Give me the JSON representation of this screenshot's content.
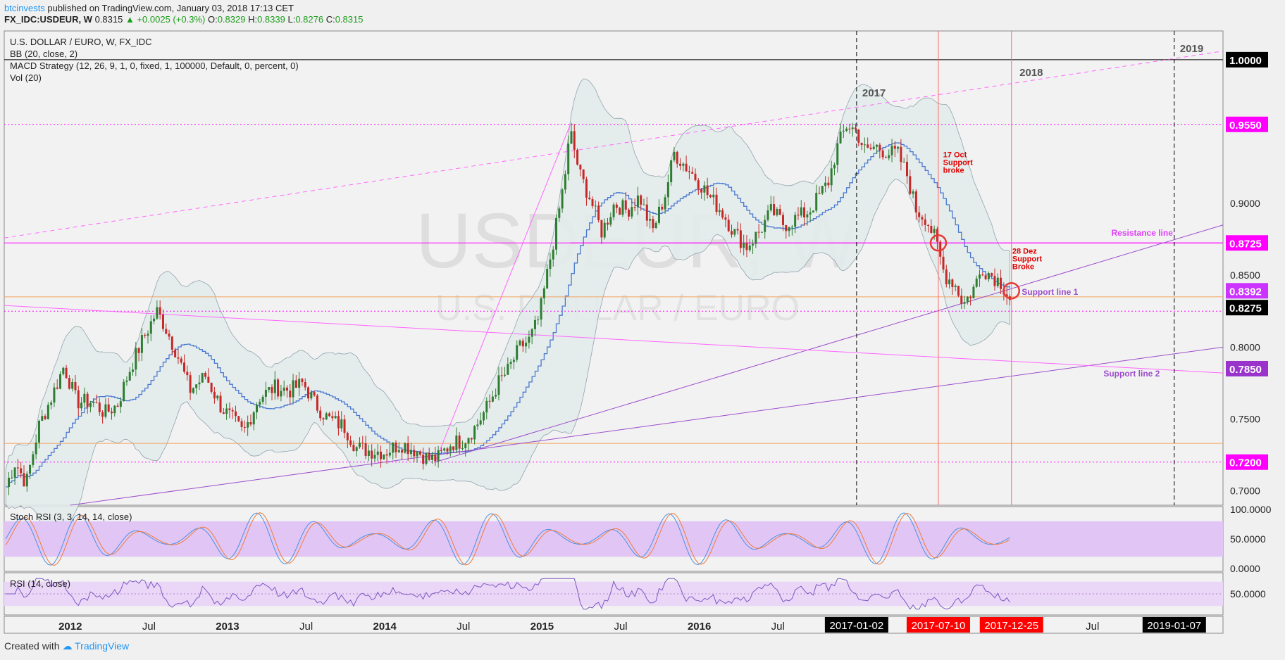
{
  "header": {
    "author": "btcinvests",
    "published": " published on TradingView.com, January 03, 2018 17:13 CET",
    "symbol": "FX_IDC:USDEUR, W",
    "last": "0.8315",
    "change": "+0.0025 (+0.3%)",
    "o_label": "O:",
    "o": "0.8329",
    "h_label": "H:",
    "h": "0.8339",
    "l_label": "L:",
    "l": "0.8276",
    "c_label": "C:",
    "c": "0.8315"
  },
  "legend": {
    "line1": "U.S. DOLLAR / EURO, W, FX_IDC",
    "line2": "BB (20, close, 2)",
    "line3": "MACD Strategy (12, 26, 9, 1, 0, fixed, 1, 100000, Default, 0, percent, 0)",
    "line4": "Vol (20)",
    "stoch": "Stoch RSI (3, 3, 14, 14, close)",
    "rsi": "RSI (14, close)"
  },
  "watermark": {
    "big": "USDEUR, W",
    "small": "U.S. DOLLAR / EURO"
  },
  "footer": {
    "created": "Created with",
    "brand": "TradingView"
  },
  "colors": {
    "up": "#2e7d32",
    "down": "#c62828",
    "bb_fill": "#e3ebeb",
    "bb_line": "#90a4ae",
    "ma": "#4a78d0",
    "magenta": "#e040fb",
    "purple": "#9c4dcc",
    "orange": "#f4a460",
    "stoch_band": "#e1c6f5",
    "rsi_band": "#ead7f7"
  },
  "chart_data": {
    "type": "candlestick",
    "symbol": "USDEUR",
    "timeframe": "W",
    "ylim": [
      0.69,
      1.02
    ],
    "y_ticks": [
      "1.0000",
      "0.9000",
      "0.8500",
      "0.8000",
      "0.7500",
      "0.7000"
    ],
    "price_badges": [
      {
        "label": "1.0000",
        "value": 1.0,
        "color": "#000000"
      },
      {
        "label": "0.9550",
        "value": 0.955,
        "color": "#ff00ff"
      },
      {
        "label": "0.8725",
        "value": 0.8725,
        "color": "#ff00ff"
      },
      {
        "label": "0.8392",
        "value": 0.8392,
        "color": "#cc33ff"
      },
      {
        "label": "0.8275",
        "value": 0.8275,
        "color": "#000000"
      },
      {
        "label": "0.7850",
        "value": 0.785,
        "color": "#9933cc"
      },
      {
        "label": "0.7200",
        "value": 0.72,
        "color": "#ff00ff"
      }
    ],
    "x_ticks": [
      {
        "label": "2012",
        "t": 2012.0,
        "bold": true
      },
      {
        "label": "Jul",
        "t": 2012.5
      },
      {
        "label": "2013",
        "t": 2013.0,
        "bold": true
      },
      {
        "label": "Jul",
        "t": 2013.5
      },
      {
        "label": "2014",
        "t": 2014.0,
        "bold": true
      },
      {
        "label": "Jul",
        "t": 2014.5
      },
      {
        "label": "2015",
        "t": 2015.0,
        "bold": true
      },
      {
        "label": "Jul",
        "t": 2015.5
      },
      {
        "label": "2016",
        "t": 2016.0,
        "bold": true
      },
      {
        "label": "Jul",
        "t": 2016.5
      },
      {
        "label": "Jul",
        "t": 2018.5
      }
    ],
    "date_badges": [
      {
        "label": "2017-01-02",
        "t": 2017.0,
        "color": "#000000"
      },
      {
        "label": "2017-07-10",
        "t": 2017.52,
        "color": "#ff0000"
      },
      {
        "label": "2017-12-25",
        "t": 2017.985,
        "color": "#ff0000"
      },
      {
        "label": "2019-01-07",
        "t": 2019.02,
        "color": "#000000"
      }
    ],
    "year_markers": [
      {
        "label": "2017",
        "t": 2017.0
      },
      {
        "label": "2018",
        "t": 2018.0
      },
      {
        "label": "2019",
        "t": 2019.02
      }
    ],
    "price_path": [
      [
        2011.58,
        0.7
      ],
      [
        2011.65,
        0.72
      ],
      [
        2011.72,
        0.705
      ],
      [
        2011.8,
        0.745
      ],
      [
        2011.88,
        0.765
      ],
      [
        2011.96,
        0.787
      ],
      [
        2012.04,
        0.762
      ],
      [
        2012.14,
        0.762
      ],
      [
        2012.22,
        0.754
      ],
      [
        2012.3,
        0.76
      ],
      [
        2012.38,
        0.785
      ],
      [
        2012.46,
        0.805
      ],
      [
        2012.55,
        0.825
      ],
      [
        2012.6,
        0.815
      ],
      [
        2012.68,
        0.795
      ],
      [
        2012.76,
        0.77
      ],
      [
        2012.86,
        0.78
      ],
      [
        2012.96,
        0.758
      ],
      [
        2013.03,
        0.75
      ],
      [
        2013.1,
        0.74
      ],
      [
        2013.2,
        0.765
      ],
      [
        2013.3,
        0.772
      ],
      [
        2013.4,
        0.77
      ],
      [
        2013.48,
        0.775
      ],
      [
        2013.56,
        0.76
      ],
      [
        2013.64,
        0.75
      ],
      [
        2013.74,
        0.745
      ],
      [
        2013.82,
        0.73
      ],
      [
        2013.9,
        0.728
      ],
      [
        2014.0,
        0.727
      ],
      [
        2014.1,
        0.733
      ],
      [
        2014.2,
        0.728
      ],
      [
        2014.28,
        0.722
      ],
      [
        2014.34,
        0.723
      ],
      [
        2014.42,
        0.733
      ],
      [
        2014.5,
        0.735
      ],
      [
        2014.58,
        0.745
      ],
      [
        2014.66,
        0.76
      ],
      [
        2014.72,
        0.775
      ],
      [
        2014.78,
        0.783
      ],
      [
        2014.86,
        0.8
      ],
      [
        2014.92,
        0.805
      ],
      [
        2014.98,
        0.82
      ],
      [
        2015.04,
        0.855
      ],
      [
        2015.1,
        0.89
      ],
      [
        2015.14,
        0.915
      ],
      [
        2015.18,
        0.95
      ],
      [
        2015.24,
        0.92
      ],
      [
        2015.3,
        0.905
      ],
      [
        2015.38,
        0.88
      ],
      [
        2015.46,
        0.9
      ],
      [
        2015.54,
        0.895
      ],
      [
        2015.62,
        0.905
      ],
      [
        2015.7,
        0.88
      ],
      [
        2015.78,
        0.905
      ],
      [
        2015.84,
        0.935
      ],
      [
        2015.92,
        0.925
      ],
      [
        2016.0,
        0.915
      ],
      [
        2016.06,
        0.905
      ],
      [
        2016.14,
        0.895
      ],
      [
        2016.22,
        0.88
      ],
      [
        2016.3,
        0.87
      ],
      [
        2016.38,
        0.88
      ],
      [
        2016.46,
        0.895
      ],
      [
        2016.54,
        0.885
      ],
      [
        2016.62,
        0.89
      ],
      [
        2016.7,
        0.895
      ],
      [
        2016.76,
        0.905
      ],
      [
        2016.82,
        0.915
      ],
      [
        2016.88,
        0.94
      ],
      [
        2016.94,
        0.955
      ],
      [
        2017.0,
        0.95
      ],
      [
        2017.06,
        0.935
      ],
      [
        2017.12,
        0.94
      ],
      [
        2017.2,
        0.935
      ],
      [
        2017.26,
        0.935
      ],
      [
        2017.32,
        0.92
      ],
      [
        2017.38,
        0.895
      ],
      [
        2017.44,
        0.89
      ],
      [
        2017.5,
        0.875
      ],
      [
        2017.56,
        0.85
      ],
      [
        2017.62,
        0.845
      ],
      [
        2017.68,
        0.83
      ],
      [
        2017.74,
        0.84
      ],
      [
        2017.8,
        0.855
      ],
      [
        2017.86,
        0.85
      ],
      [
        2017.92,
        0.845
      ],
      [
        2017.985,
        0.8315
      ]
    ],
    "trend_lines": [
      {
        "name": "Resistance line",
        "from": [
          2015.18,
          0.8725
        ],
        "to": [
          2019.33,
          0.8725
        ],
        "style": "solid",
        "color": "#ff00ff"
      },
      {
        "name": "Support line 1",
        "from": [
          2014.32,
          0.72
        ],
        "to": [
          2019.33,
          0.885
        ],
        "style": "solid",
        "color": "#9c4dcc"
      },
      {
        "name": "Support line 2",
        "from": [
          2012.0,
          0.69
        ],
        "to": [
          2019.33,
          0.8
        ],
        "style": "solid",
        "color": "#9c4dcc"
      },
      {
        "name": "diagonal-down",
        "from": [
          2011.58,
          0.829
        ],
        "to": [
          2019.33,
          0.782
        ],
        "style": "solid",
        "color": "#ff66ff"
      },
      {
        "name": "upper-dashed",
        "from": [
          2011.58,
          0.876
        ],
        "to": [
          2019.33,
          1.006
        ],
        "style": "dashed",
        "color": "#ff66ff"
      },
      {
        "name": "rally-line",
        "from": [
          2014.32,
          0.72
        ],
        "to": [
          2015.18,
          0.955
        ],
        "style": "solid",
        "color": "#ff66ff"
      }
    ],
    "h_levels": [
      {
        "value": 1.0,
        "color": "#000000",
        "style": "solid"
      },
      {
        "value": 0.955,
        "color": "#ff00ff",
        "style": "dotted"
      },
      {
        "value": 0.8725,
        "color": "#ff00ff",
        "style": "solid"
      },
      {
        "value": 0.835,
        "color": "#f4a460",
        "style": "solid"
      },
      {
        "value": 0.825,
        "color": "#ff00ff",
        "style": "dotted"
      },
      {
        "value": 0.733,
        "color": "#f4a460",
        "style": "solid"
      },
      {
        "value": 0.72,
        "color": "#ff00ff",
        "style": "dotted"
      }
    ],
    "annotations": [
      {
        "text": [
          "17 Oct",
          "Support",
          "broke"
        ],
        "t": 2017.55,
        "y": 0.932,
        "color": "#e00000"
      },
      {
        "text": [
          "28 Dez",
          "Support",
          "Broke"
        ],
        "t": 2017.99,
        "y": 0.865,
        "color": "#e00000"
      },
      {
        "text": [
          "Resistance line"
        ],
        "t": 2018.62,
        "y": 0.8775,
        "color": "#e040fb"
      },
      {
        "text": [
          "Support line 1"
        ],
        "t": 2018.05,
        "y": 0.8365,
        "color": "#9c4dcc"
      },
      {
        "text": [
          "Support line 2"
        ],
        "t": 2018.57,
        "y": 0.7795,
        "color": "#9c4dcc"
      }
    ],
    "circles": [
      [
        2017.52,
        0.8725
      ],
      [
        2017.985,
        0.8392
      ]
    ],
    "stoch_rsi": {
      "ylim": [
        0,
        100
      ],
      "ticks": [
        "100.0000",
        "50.0000",
        "0.0000"
      ],
      "band": [
        20,
        80
      ]
    },
    "rsi": {
      "ticks": [
        "50.0000"
      ],
      "band": [
        30,
        70
      ]
    }
  }
}
